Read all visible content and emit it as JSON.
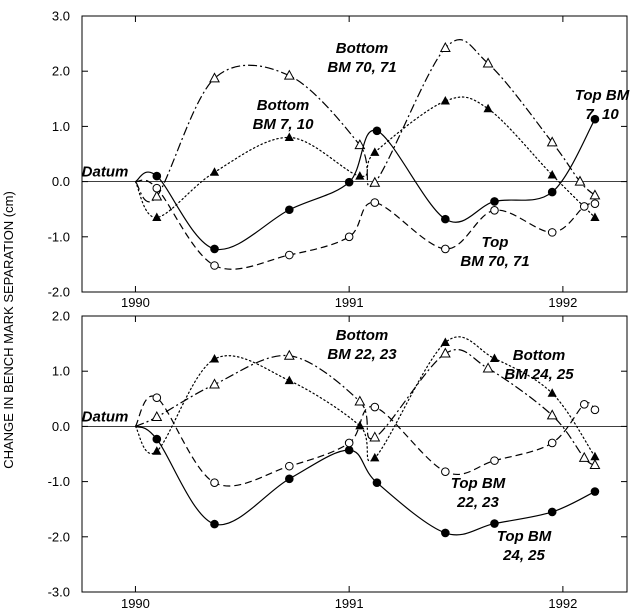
{
  "chart_data": {
    "type": "line",
    "ylabel": "CHANGE IN BENCH MARK SEPARATION (cm)",
    "panels": [
      {
        "xlim": [
          1989.75,
          1992.3
        ],
        "ylim": [
          -2.0,
          3.0
        ],
        "yticks": [
          -2.0,
          -1.0,
          0.0,
          1.0,
          2.0,
          3.0
        ],
        "ytick_labels": [
          "-2.0",
          "-1.0",
          "0.0",
          "1.0",
          "2.0",
          "3.0"
        ],
        "xticks": [
          1990,
          1991,
          1992
        ],
        "xtick_labels": [
          "1990",
          "1991",
          "1992"
        ],
        "series": [
          {
            "name": "Bottom BM 70, 71",
            "marker": "open-triangle",
            "line": "dashdot",
            "x": [
              1990.0,
              1990.1,
              1990.37,
              1990.72,
              1991.05,
              1991.12,
              1991.45,
              1991.65,
              1991.95,
              1992.08,
              1992.15
            ],
            "y": [
              0.0,
              -0.27,
              1.87,
              1.92,
              0.66,
              -0.02,
              2.42,
              2.14,
              0.71,
              0.0,
              -0.25
            ]
          },
          {
            "name": "Bottom BM 7, 10",
            "marker": "filled-triangle",
            "line": "dotted",
            "x": [
              1990.0,
              1990.1,
              1990.37,
              1990.72,
              1991.05,
              1991.12,
              1991.45,
              1991.65,
              1991.95,
              1992.15
            ],
            "y": [
              0.0,
              -0.65,
              0.17,
              0.8,
              0.1,
              0.53,
              1.46,
              1.32,
              0.12,
              -0.65
            ]
          },
          {
            "name": "Top BM 7, 10",
            "marker": "filled-circle",
            "line": "solid",
            "x": [
              1990.0,
              1990.1,
              1990.37,
              1990.72,
              1991.0,
              1991.13,
              1991.45,
              1991.68,
              1991.95,
              1992.15
            ],
            "y": [
              0.0,
              0.1,
              -1.22,
              -0.51,
              -0.01,
              0.92,
              -0.68,
              -0.36,
              -0.19,
              1.13
            ]
          },
          {
            "name": "Top BM 70, 71",
            "marker": "open-circle",
            "line": "dashed",
            "x": [
              1990.0,
              1990.1,
              1990.37,
              1990.72,
              1991.0,
              1991.12,
              1991.45,
              1991.68,
              1991.95,
              1992.1,
              1992.15
            ],
            "y": [
              0.0,
              -0.12,
              -1.52,
              -1.33,
              -1.0,
              -0.38,
              -1.22,
              -0.52,
              -0.92,
              -0.45,
              -0.4
            ]
          }
        ],
        "annotations": [
          {
            "lines": [
              "Bottom",
              "BM 70, 71"
            ]
          },
          {
            "lines": [
              "Bottom",
              "BM 7, 10"
            ]
          },
          {
            "lines": [
              "Top BM",
              "7, 10"
            ]
          },
          {
            "lines": [
              "Top",
              "BM 70, 71"
            ]
          },
          {
            "lines": [
              "Datum"
            ]
          }
        ]
      },
      {
        "xlim": [
          1989.75,
          1992.3
        ],
        "ylim": [
          -3.0,
          2.0
        ],
        "yticks": [
          -3.0,
          -2.0,
          -1.0,
          0.0,
          1.0,
          2.0
        ],
        "ytick_labels": [
          "-3.0",
          "-2.0",
          "-1.0",
          "0.0",
          "1.0",
          "2.0"
        ],
        "xticks": [
          1990,
          1991,
          1992
        ],
        "xtick_labels": [
          "1990",
          "1991",
          "1992"
        ],
        "series": [
          {
            "name": "Bottom BM 22, 23",
            "marker": "open-triangle",
            "line": "dashdot",
            "x": [
              1990.0,
              1990.1,
              1990.37,
              1990.72,
              1991.05,
              1991.12,
              1991.45,
              1991.65,
              1991.95,
              1992.1,
              1992.15
            ],
            "y": [
              0.0,
              0.17,
              0.76,
              1.28,
              0.45,
              -0.2,
              1.32,
              1.05,
              0.2,
              -0.57,
              -0.7
            ]
          },
          {
            "name": "Bottom BM 24, 25",
            "marker": "filled-triangle",
            "line": "dotted",
            "x": [
              1990.0,
              1990.1,
              1990.37,
              1990.72,
              1991.05,
              1991.12,
              1991.45,
              1991.68,
              1991.95,
              1992.15
            ],
            "y": [
              0.0,
              -0.45,
              1.22,
              0.83,
              0.01,
              -0.57,
              1.52,
              1.23,
              0.6,
              -0.55
            ]
          },
          {
            "name": "Top BM 24, 25",
            "marker": "filled-circle",
            "line": "solid",
            "x": [
              1990.0,
              1990.1,
              1990.37,
              1990.72,
              1991.0,
              1991.13,
              1991.45,
              1991.68,
              1991.95,
              1992.15
            ],
            "y": [
              0.0,
              -0.23,
              -1.77,
              -0.95,
              -0.43,
              -1.02,
              -1.93,
              -1.76,
              -1.55,
              -1.18
            ]
          },
          {
            "name": "Top BM 22, 23",
            "marker": "open-circle",
            "line": "dashed",
            "x": [
              1990.0,
              1990.1,
              1990.37,
              1990.72,
              1991.0,
              1991.12,
              1991.45,
              1991.68,
              1991.95,
              1992.1,
              1992.15
            ],
            "y": [
              0.0,
              0.52,
              -1.02,
              -0.72,
              -0.3,
              0.35,
              -0.82,
              -0.62,
              -0.3,
              0.4,
              0.3
            ]
          }
        ],
        "annotations": [
          {
            "lines": [
              "Bottom",
              "BM 22, 23"
            ]
          },
          {
            "lines": [
              "Bottom",
              "BM 24, 25"
            ]
          },
          {
            "lines": [
              "Top BM",
              "22, 23"
            ]
          },
          {
            "lines": [
              "Top BM",
              "24, 25"
            ]
          },
          {
            "lines": [
              "Datum"
            ]
          }
        ]
      }
    ]
  }
}
